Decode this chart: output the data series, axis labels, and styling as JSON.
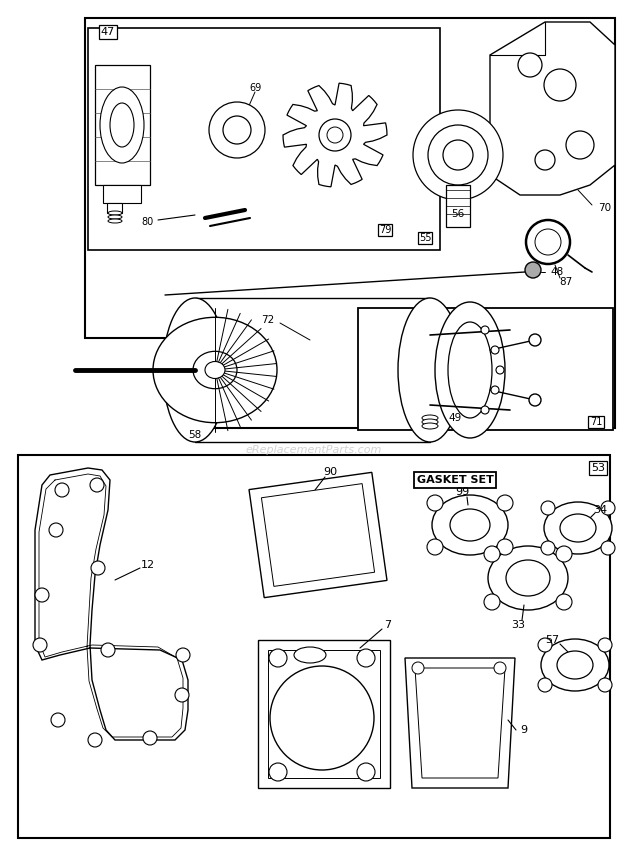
{
  "bg": "#ffffff",
  "lc": "#000000",
  "watermark": "eReplacementParts.com",
  "wm_color": "#c8c8c8",
  "fig_w": 6.29,
  "fig_h": 8.5,
  "dpi": 100
}
